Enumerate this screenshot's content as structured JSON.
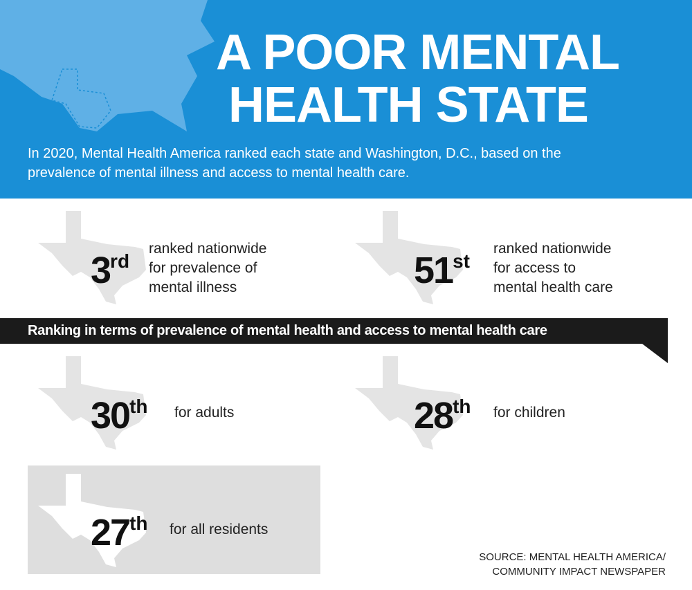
{
  "header": {
    "title": [
      "A POOR MENTAL",
      "HEALTH STATE"
    ],
    "subtitle": [
      "In 2020, Mental Health America ranked each state and Washington, D.C., based on the",
      "prevalence of mental illness and access to mental health care."
    ]
  },
  "stats": [
    {
      "rank": "3",
      "suffix": "rd",
      "description": [
        "ranked nationwide",
        "for prevalence of",
        "mental illness"
      ]
    },
    {
      "rank": "51",
      "suffix": "st",
      "description": [
        "ranked nationwide",
        "for access to",
        "mental health care"
      ]
    }
  ],
  "banner": "Ranking in terms of prevalence of mental health and access to mental health care",
  "rankings": [
    {
      "rank": "30",
      "suffix": "th",
      "description": "for adults"
    },
    {
      "rank": "28",
      "suffix": "th",
      "description": "for children"
    },
    {
      "rank": "27",
      "suffix": "th",
      "description": "for all residents"
    }
  ],
  "source": [
    "SOURCE: MENTAL HEALTH AMERICA/",
    "COMMUNITY IMPACT NEWSPAPER"
  ]
}
